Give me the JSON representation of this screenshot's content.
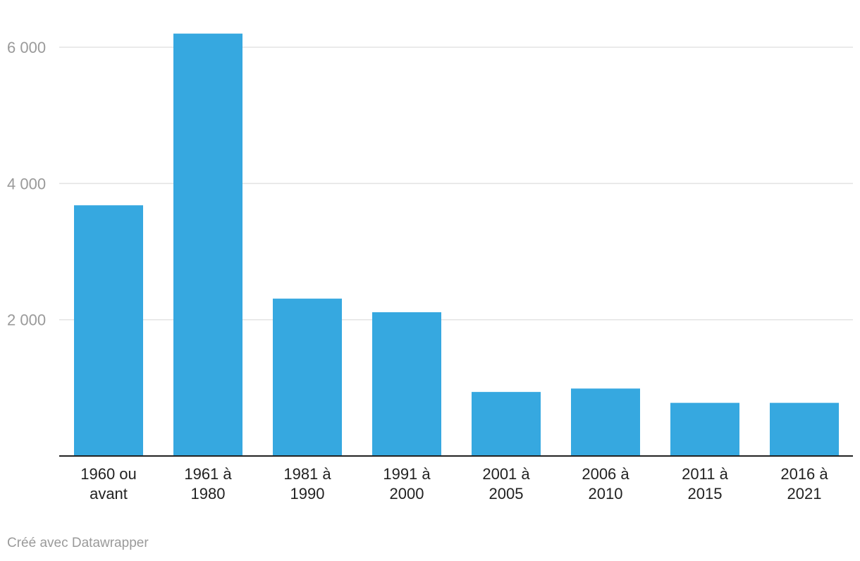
{
  "chart_data": {
    "type": "bar",
    "categories": [
      [
        "1960 ou",
        "avant"
      ],
      [
        "1961 à",
        "1980"
      ],
      [
        "1981 à",
        "1990"
      ],
      [
        "1991 à",
        "2000"
      ],
      [
        "2001 à",
        "2005"
      ],
      [
        "2006 à",
        "2010"
      ],
      [
        "2011 à",
        "2015"
      ],
      [
        "2016 à",
        "2021"
      ]
    ],
    "values": [
      3680,
      6200,
      2310,
      2110,
      940,
      990,
      780,
      780
    ],
    "ylim": [
      0,
      6000
    ],
    "yticks": [
      2000,
      4000,
      6000
    ],
    "ytick_labels": [
      "2 000",
      "4 000",
      "6 000"
    ],
    "grid": true,
    "bar_color": "#36a8e0"
  },
  "footer": {
    "credit": "Créé avec Datawrapper"
  }
}
